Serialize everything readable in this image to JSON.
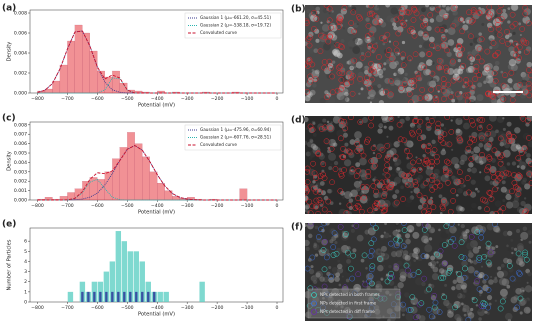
{
  "chart_data": [
    {
      "type": "histogram",
      "panel_label": "(a)",
      "x_label": "Potential (mV)",
      "y_label": "Density",
      "bins": [
        -800,
        -775,
        -750,
        -725,
        -700,
        -675,
        -650,
        -625,
        -600,
        -575,
        -550,
        -525,
        -500,
        -475,
        -450,
        -425,
        -400,
        -375,
        -350,
        -325,
        -300,
        -275,
        -250,
        -225,
        -200,
        -175,
        -150,
        -125,
        -100,
        -75,
        -50,
        -25,
        0
      ],
      "values": [
        0.0002,
        0.0004,
        0.0012,
        0.0028,
        0.0052,
        0.0068,
        0.006,
        0.0042,
        0.0022,
        0.0016,
        0.0022,
        0.001,
        0.0003,
        0.0002,
        0.0001,
        0,
        0.0002,
        0,
        0.0001,
        0,
        0,
        0,
        0.0001,
        0,
        0,
        0,
        0.0001,
        0,
        0,
        0,
        0,
        0
      ],
      "color": "#e8474f",
      "x": [
        -800,
        -775,
        -750,
        -725,
        -700,
        -675,
        -650,
        -625,
        -600,
        -575,
        -550,
        -525,
        -500,
        -475,
        -450,
        -425,
        -400,
        -375,
        -350,
        -325,
        -300,
        -275,
        -250,
        -225,
        -200,
        -175,
        -150,
        -125,
        -100,
        -75,
        -50,
        -25,
        0
      ],
      "series": [
        {
          "name": "Gaussian 1 (μ=-661.20, σ=45.51)",
          "color": "#3b3b8f",
          "dash": "1,1",
          "values": [
            6e-05,
            0.00028,
            0.00095,
            0.0024,
            0.0044,
            0.0061,
            0.0062,
            0.0047,
            0.0026,
            0.0011,
            0.00032,
            7e-05,
            0,
            0,
            0,
            0,
            0,
            0,
            0,
            0,
            0,
            0,
            0,
            0,
            0,
            0,
            0,
            0,
            0,
            0,
            0,
            0,
            0
          ]
        },
        {
          "name": "Gaussian 2 (μ=-538.18, σ=19.72)",
          "color": "#2bb5b0",
          "dash": "1,1",
          "values": [
            0,
            0,
            0,
            0,
            0,
            0,
            0,
            0,
            1e-05,
            0.0003,
            0.0015,
            0.00144,
            0.00028,
            0,
            0,
            0,
            0,
            0,
            0,
            0,
            0,
            0,
            0,
            0,
            0,
            0,
            0,
            0,
            0,
            0,
            0,
            0,
            0
          ]
        },
        {
          "name": "Convoluted curve",
          "color": "#c8102e",
          "dash": "3,1.5",
          "values": [
            6e-05,
            0.00028,
            0.00095,
            0.0024,
            0.0044,
            0.0061,
            0.0062,
            0.0047,
            0.0026,
            0.0014,
            0.0018,
            0.0015,
            0.0003,
            0,
            0,
            0,
            0,
            0,
            0,
            0,
            0,
            0,
            0,
            0,
            0,
            0,
            0,
            0,
            0,
            0,
            0,
            0,
            0
          ]
        }
      ],
      "xlim": [
        -825,
        20
      ],
      "xticks": [
        {
          "value": -800,
          "label": "−800"
        },
        {
          "value": -700,
          "label": "−700"
        },
        {
          "value": -600,
          "label": "−600"
        },
        {
          "value": -500,
          "label": "−500"
        },
        {
          "value": -400,
          "label": "−400"
        },
        {
          "value": -300,
          "label": "−300"
        },
        {
          "value": -200,
          "label": "−200"
        },
        {
          "value": -100,
          "label": "−100"
        },
        0
      ],
      "ylim": [
        0,
        0.0083
      ],
      "yticks": [
        {
          "value": 0,
          "label": "0.000"
        },
        {
          "value": 0.002,
          "label": "0.002"
        },
        {
          "value": 0.004,
          "label": "0.004"
        },
        {
          "value": 0.006,
          "label": "0.006"
        },
        {
          "value": 0.008,
          "label": "0.008"
        }
      ]
    },
    {
      "type": "histogram",
      "panel_label": "(c)",
      "x_label": "Potential (mV)",
      "y_label": "Density",
      "bins": [
        -800,
        -775,
        -750,
        -725,
        -700,
        -675,
        -650,
        -625,
        -600,
        -575,
        -550,
        -525,
        -500,
        -475,
        -450,
        -425,
        -400,
        -375,
        -350,
        -325,
        -300,
        -275,
        -250,
        -225,
        -200,
        -175,
        -150,
        -125,
        -100,
        -75,
        -50,
        -25,
        0
      ],
      "values": [
        0.0001,
        0.0003,
        0.0001,
        0.0004,
        0.0008,
        0.0012,
        0.002,
        0.0024,
        0.0022,
        0.003,
        0.0044,
        0.0056,
        0.0072,
        0.006,
        0.0046,
        0.003,
        0.0018,
        0.001,
        0.0004,
        0.0002,
        0.0003,
        0.0001,
        0,
        0.0001,
        0,
        0,
        0,
        0.0012,
        0,
        0,
        0,
        0
      ],
      "color": "#e8474f",
      "x": [
        -800,
        -775,
        -750,
        -725,
        -700,
        -675,
        -650,
        -625,
        -600,
        -575,
        -550,
        -525,
        -500,
        -475,
        -450,
        -425,
        -400,
        -375,
        -350,
        -325,
        -300,
        -275,
        -250,
        -225,
        -200,
        -175,
        -150,
        -125,
        -100,
        -75,
        -50,
        -25,
        0
      ],
      "series": [
        {
          "name": "Gaussian 1 (μ=-475.96, σ=60.94)",
          "color": "#3b3b8f",
          "dash": "1,1",
          "values": [
            0,
            0,
            0,
            0,
            1e-05,
            3e-05,
            0.0001,
            0.0003,
            0.00073,
            0.0016,
            0.0028,
            0.0042,
            0.0054,
            0.0058,
            0.0053,
            0.0041,
            0.0027,
            0.0015,
            0.0007,
            0.00027,
            9e-05,
            3e-05,
            0,
            0,
            0,
            0,
            0,
            0,
            0,
            0,
            0,
            0,
            0
          ]
        },
        {
          "name": "Gaussian 2 (μ=-607.76, σ=28.51)",
          "color": "#2bb5b0",
          "dash": "1,1",
          "values": [
            0,
            0,
            0,
            0,
            1e-05,
            0.00015,
            0.00078,
            0.0019,
            0.0022,
            0.0012,
            0.0003,
            3e-05,
            0,
            0,
            0,
            0,
            0,
            0,
            0,
            0,
            0,
            0,
            0,
            0,
            0,
            0,
            0,
            0,
            0,
            0,
            0,
            0,
            0
          ]
        },
        {
          "name": "Convoluted curve",
          "color": "#c8102e",
          "dash": "3,1.5",
          "values": [
            0,
            0,
            0,
            0,
            2e-05,
            0.00018,
            0.00088,
            0.0022,
            0.0029,
            0.0028,
            0.0031,
            0.0042,
            0.0054,
            0.0058,
            0.0053,
            0.0041,
            0.0027,
            0.0015,
            0.0007,
            0.00027,
            9e-05,
            3e-05,
            0,
            0,
            0,
            0,
            0,
            0,
            0,
            0,
            0,
            0,
            0
          ]
        }
      ],
      "xlim": [
        -825,
        20
      ],
      "xticks": [
        {
          "value": -800,
          "label": "−800"
        },
        {
          "value": -700,
          "label": "−700"
        },
        {
          "value": -600,
          "label": "−600"
        },
        {
          "value": -500,
          "label": "−500"
        },
        {
          "value": -400,
          "label": "−400"
        },
        {
          "value": -300,
          "label": "−300"
        },
        {
          "value": -200,
          "label": "−200"
        },
        {
          "value": -100,
          "label": "−100"
        },
        0
      ],
      "ylim": [
        0,
        0.0083
      ],
      "yticks": [
        {
          "value": 0,
          "label": "0.000"
        },
        {
          "value": 0.001,
          "label": "0.001"
        },
        {
          "value": 0.002,
          "label": "0.002"
        },
        {
          "value": 0.003,
          "label": "0.003"
        },
        {
          "value": 0.004,
          "label": "0.004"
        },
        {
          "value": 0.005,
          "label": "0.005"
        },
        {
          "value": 0.006,
          "label": "0.006"
        },
        {
          "value": 0.007,
          "label": "0.007"
        },
        {
          "value": 0.008,
          "label": "0.008"
        }
      ]
    },
    {
      "type": "histogram",
      "panel_label": "(e)",
      "x_label": "Potential (mV)",
      "y_label": "Number of Particles",
      "bins": [
        -800,
        -780,
        -760,
        -740,
        -720,
        -700,
        -680,
        -660,
        -640,
        -620,
        -600,
        -580,
        -560,
        -540,
        -520,
        -500,
        -480,
        -460,
        -440,
        -420,
        -400,
        -380,
        -360,
        -340,
        -320,
        -300,
        -280,
        -260,
        -240,
        -220,
        -200,
        -180,
        -160,
        -140,
        -120,
        -100,
        -80,
        -60,
        -40,
        -20,
        0
      ],
      "series": [
        {
          "color": "#5fcfc4",
          "values": [
            0,
            0,
            0,
            0,
            0,
            1,
            0,
            2,
            1,
            2,
            2,
            3,
            4,
            7,
            6,
            5,
            5,
            4,
            2,
            1,
            1,
            1,
            0,
            0,
            0,
            0,
            0,
            2,
            0,
            0,
            0,
            0,
            0,
            0,
            0,
            0,
            0,
            0,
            0,
            0
          ]
        },
        {
          "color": "#2b3a9a",
          "values": [
            0,
            0,
            0,
            0,
            0,
            0,
            0,
            1,
            1,
            1,
            1,
            1,
            1,
            1,
            1,
            1,
            1,
            1,
            1,
            1,
            0,
            0,
            0,
            0,
            0,
            0,
            0,
            0,
            0,
            0,
            0,
            0,
            0,
            0,
            0,
            0,
            0,
            0,
            0,
            0
          ]
        }
      ],
      "xlim": [
        -825,
        20
      ],
      "xticks": [
        {
          "value": -800,
          "label": "−800"
        },
        {
          "value": -700,
          "label": "−700"
        },
        {
          "value": -600,
          "label": "−600"
        },
        {
          "value": -500,
          "label": "−500"
        },
        {
          "value": -400,
          "label": "−400"
        },
        {
          "value": -300,
          "label": "−300"
        },
        {
          "value": -200,
          "label": "−200"
        },
        {
          "value": -100,
          "label": "−100"
        },
        0
      ],
      "ylim": [
        0,
        7.3
      ],
      "yticks": [
        0,
        1,
        2,
        3,
        4,
        5,
        6
      ]
    }
  ],
  "image_panels": [
    {
      "label": "(b)"
    },
    {
      "label": "(d)"
    },
    {
      "label": "(f)",
      "legend": [
        {
          "name": "NPs detected in both frames",
          "color": "#3ad1c4"
        },
        {
          "name": "NPs detected in first frame",
          "color": "#3b6fd8"
        },
        {
          "name": "NPs detected in diff frame",
          "color": "#6a2fb0"
        }
      ]
    }
  ]
}
